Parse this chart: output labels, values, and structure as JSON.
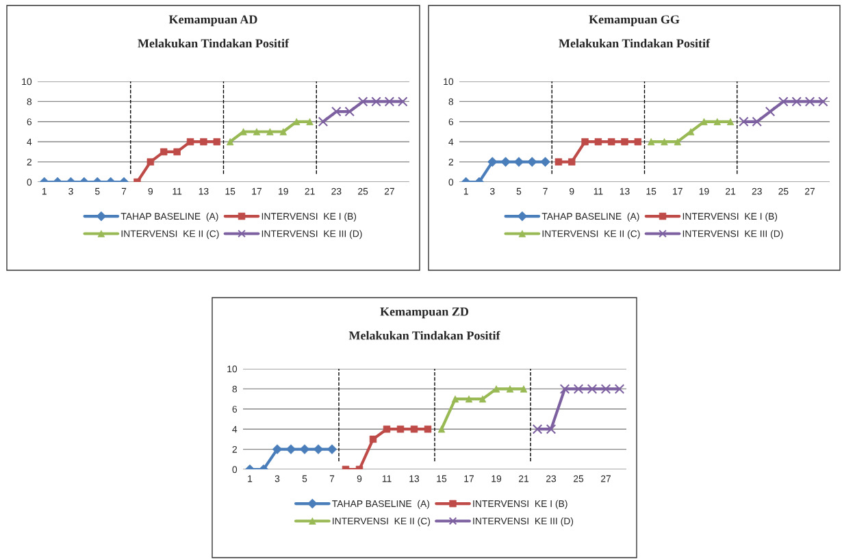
{
  "chart_data": [
    {
      "type": "line",
      "title": "Kemampuan AD",
      "subtitle": "Melakukan Tindakan Positif",
      "categories": [
        "1",
        null,
        "3",
        null,
        "5",
        null,
        "7",
        null,
        "9",
        null,
        "11",
        null,
        "13",
        null,
        "15",
        null,
        "17",
        null,
        "19",
        null,
        "21",
        null,
        "23",
        null,
        "25",
        null,
        "27",
        null
      ],
      "series": [
        {
          "name": "TAHAP BASELINE  (A)",
          "color": "#4a7ebb",
          "marker": "diamond",
          "values": [
            0,
            0,
            0,
            0,
            0,
            0,
            0,
            null,
            null,
            null,
            null,
            null,
            null,
            null,
            null,
            null,
            null,
            null,
            null,
            null,
            null,
            null,
            null,
            null,
            null,
            null,
            null,
            null
          ]
        },
        {
          "name": "INTERVENSI  KE I (B)",
          "color": "#be4b48",
          "marker": "square",
          "values": [
            null,
            null,
            null,
            null,
            null,
            null,
            null,
            0,
            2,
            3,
            3,
            4,
            4,
            4,
            null,
            null,
            null,
            null,
            null,
            null,
            null,
            null,
            null,
            null,
            null,
            null,
            null,
            null
          ]
        },
        {
          "name": "INTERVENSI  KE II (C)",
          "color": "#98b954",
          "marker": "triangle",
          "values": [
            null,
            null,
            null,
            null,
            null,
            null,
            null,
            null,
            null,
            null,
            null,
            null,
            null,
            null,
            4,
            5,
            5,
            5,
            5,
            6,
            6,
            null,
            null,
            null,
            null,
            null,
            null,
            null
          ]
        },
        {
          "name": "INTERVENSI  KE III (D)",
          "color": "#7d60a0",
          "marker": "cross",
          "values": [
            null,
            null,
            null,
            null,
            null,
            null,
            null,
            null,
            null,
            null,
            null,
            null,
            null,
            null,
            null,
            null,
            null,
            null,
            null,
            null,
            null,
            6,
            7,
            7,
            8,
            8,
            8,
            8
          ]
        }
      ],
      "ylim": [
        0,
        10
      ],
      "yticks": [
        0,
        2,
        4,
        6,
        8,
        10
      ],
      "grid": "y",
      "legend": "bottom",
      "line_style": "solid"
    },
    {
      "type": "line",
      "title": "Kemampuan GG",
      "subtitle": "Melakukan Tindakan Positif",
      "categories": [
        "1",
        null,
        "3",
        null,
        "5",
        null,
        "7",
        null,
        "9",
        null,
        "11",
        null,
        "13",
        null,
        "15",
        null,
        "17",
        null,
        "19",
        null,
        "21",
        null,
        "23",
        null,
        "25",
        null,
        "27",
        null
      ],
      "series": [
        {
          "name": "TAHAP BASELINE  (A)",
          "color": "#4a7ebb",
          "marker": "diamond",
          "values": [
            0,
            0,
            2,
            2,
            2,
            2,
            2,
            null,
            null,
            null,
            null,
            null,
            null,
            null,
            null,
            null,
            null,
            null,
            null,
            null,
            null,
            null,
            null,
            null,
            null,
            null,
            null,
            null
          ]
        },
        {
          "name": "INTERVENSI  KE I (B)",
          "color": "#be4b48",
          "marker": "square",
          "values": [
            null,
            null,
            null,
            null,
            null,
            null,
            null,
            2,
            2,
            4,
            4,
            4,
            4,
            4,
            null,
            null,
            null,
            null,
            null,
            null,
            null,
            null,
            null,
            null,
            null,
            null,
            null,
            null
          ]
        },
        {
          "name": "INTERVENSI  KE II (C)",
          "color": "#98b954",
          "marker": "triangle",
          "values": [
            null,
            null,
            null,
            null,
            null,
            null,
            null,
            null,
            null,
            null,
            null,
            null,
            null,
            null,
            4,
            4,
            4,
            5,
            6,
            6,
            6,
            null,
            null,
            null,
            null,
            null,
            null,
            null
          ]
        },
        {
          "name": "INTERVENSI  KE III (D)",
          "color": "#7d60a0",
          "marker": "cross",
          "values": [
            null,
            null,
            null,
            null,
            null,
            null,
            null,
            null,
            null,
            null,
            null,
            null,
            null,
            null,
            null,
            null,
            null,
            null,
            null,
            null,
            null,
            6,
            6,
            7,
            8,
            8,
            8,
            8
          ]
        }
      ],
      "ylim": [
        0,
        10
      ],
      "yticks": [
        0,
        2,
        4,
        6,
        8,
        10
      ],
      "grid": "y",
      "legend": "bottom",
      "line_style": "solid"
    },
    {
      "type": "line",
      "title": "Kemampuan ZD",
      "subtitle": "Melakukan Tindakan Positif",
      "categories": [
        "1",
        null,
        "3",
        null,
        "5",
        null,
        "7",
        null,
        "9",
        null,
        "11",
        null,
        "13",
        null,
        "15",
        null,
        "17",
        null,
        "19",
        null,
        "21",
        null,
        "23",
        null,
        "25",
        null,
        "27",
        null
      ],
      "series": [
        {
          "name": "TAHAP BASELINE  (A)",
          "color": "#4a7ebb",
          "marker": "diamond",
          "values": [
            0,
            0,
            2,
            2,
            2,
            2,
            2,
            null,
            null,
            null,
            null,
            null,
            null,
            null,
            null,
            null,
            null,
            null,
            null,
            null,
            null,
            null,
            null,
            null,
            null,
            null,
            null,
            null
          ]
        },
        {
          "name": "INTERVENSI  KE I (B)",
          "color": "#be4b48",
          "marker": "square",
          "values": [
            null,
            null,
            null,
            null,
            null,
            null,
            null,
            0,
            0,
            3,
            4,
            4,
            4,
            4,
            null,
            null,
            null,
            null,
            null,
            null,
            null,
            null,
            null,
            null,
            null,
            null,
            null,
            null
          ]
        },
        {
          "name": "INTERVENSI  KE II (C)",
          "color": "#98b954",
          "marker": "triangle",
          "values": [
            null,
            null,
            null,
            null,
            null,
            null,
            null,
            null,
            null,
            null,
            null,
            null,
            null,
            null,
            4,
            7,
            7,
            7,
            8,
            8,
            8,
            null,
            null,
            null,
            null,
            null,
            null,
            null
          ]
        },
        {
          "name": "INTERVENSI  KE III (D)",
          "color": "#7d60a0",
          "marker": "cross",
          "values": [
            null,
            null,
            null,
            null,
            null,
            null,
            null,
            null,
            null,
            null,
            null,
            null,
            null,
            null,
            null,
            null,
            null,
            null,
            null,
            null,
            null,
            4,
            4,
            8,
            8,
            8,
            8,
            8
          ]
        }
      ],
      "ylim": [
        0,
        10
      ],
      "yticks": [
        0,
        2,
        4,
        6,
        8,
        10
      ],
      "grid": "y",
      "legend": "bottom",
      "line_style": "solid"
    }
  ]
}
